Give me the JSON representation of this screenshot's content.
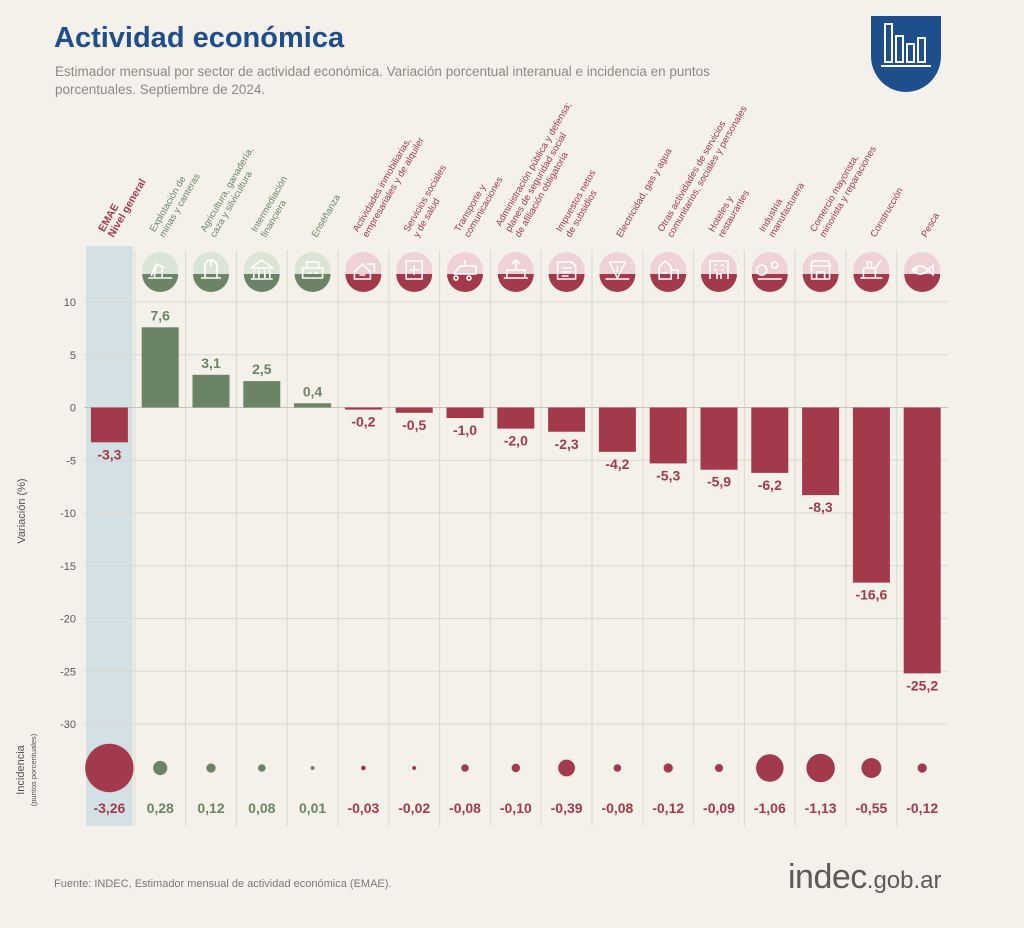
{
  "header": {
    "title": "Actividad económica",
    "subtitle": "Estimador mensual por sector de actividad económica. Variación porcentual interanual e incidencia en puntos porcentuales. Septiembre de 2024."
  },
  "colors": {
    "positive": "#6b8466",
    "negative": "#a33a4b",
    "title": "#1f4e8c",
    "highlight": "#d3e0e4",
    "grid": "#dcd8cf",
    "icon_pos_bg": "#dbe5d5",
    "icon_neg_bg": "#efd2d6"
  },
  "chart_data": {
    "type": "bar",
    "ylabel": "Variación (%)",
    "ylabel2": "Incidencia",
    "ylabel2_sub": "(puntos porcentuales)",
    "ylim": [
      -30,
      10
    ],
    "yticks": [
      "10",
      "5",
      "0",
      "-5",
      "-10",
      "-15",
      "-20",
      "-25",
      "-30"
    ],
    "grid": true,
    "categories": [
      {
        "label": "EMAE\nNivel general",
        "icon": "emae",
        "value": -3.3,
        "value_label": "-3,3",
        "incidence": -3.26,
        "incidence_label": "-3,26",
        "highlight": true
      },
      {
        "label": "Explotación de\nminas y canteras",
        "icon": "oil-pump-icon",
        "value": 7.6,
        "value_label": "7,6",
        "incidence": 0.28,
        "incidence_label": "0,28"
      },
      {
        "label": "Agricultura, ganadería,\ncaza y silvicultura",
        "icon": "agriculture-icon",
        "value": 3.1,
        "value_label": "3,1",
        "incidence": 0.12,
        "incidence_label": "0,12"
      },
      {
        "label": "Intermediación\nfinanciera",
        "icon": "bank-icon",
        "value": 2.5,
        "value_label": "2,5",
        "incidence": 0.08,
        "incidence_label": "0,08"
      },
      {
        "label": "Enseñanza",
        "icon": "school-icon",
        "value": 0.4,
        "value_label": "0,4",
        "incidence": 0.01,
        "incidence_label": "0,01"
      },
      {
        "label": "Actividades inmobiliarias,\nempresariales y de alquiler",
        "icon": "real-estate-icon",
        "value": -0.2,
        "value_label": "-0,2",
        "incidence": -0.03,
        "incidence_label": "-0,03"
      },
      {
        "label": "Servicios sociales\ny de salud",
        "icon": "health-icon",
        "value": -0.5,
        "value_label": "-0,5",
        "incidence": -0.02,
        "incidence_label": "-0,02"
      },
      {
        "label": "Transporte y\ncomunicaciones",
        "icon": "transport-icon",
        "value": -1.0,
        "value_label": "-1,0",
        "incidence": -0.08,
        "incidence_label": "-0,08"
      },
      {
        "label": "Administración pública y defensa;\nplanes de seguridad social\nde afiliación obligatoria",
        "icon": "government-icon",
        "value": -2.0,
        "value_label": "-2,0",
        "incidence": -0.1,
        "incidence_label": "-0,10"
      },
      {
        "label": "Impuestos netos\nde subsidios",
        "icon": "taxes-icon",
        "value": -2.3,
        "value_label": "-2,3",
        "incidence": -0.39,
        "incidence_label": "-0,39"
      },
      {
        "label": "Electricidad, gas y agua",
        "icon": "utilities-icon",
        "value": -4.2,
        "value_label": "-4,2",
        "incidence": -0.08,
        "incidence_label": "-0,08"
      },
      {
        "label": "Otras actividades de servicios\ncomunitarios, sociales y personales",
        "icon": "community-icon",
        "value": -5.3,
        "value_label": "-5,3",
        "incidence": -0.12,
        "incidence_label": "-0,12"
      },
      {
        "label": "Hoteles y\nrestaurantes",
        "icon": "hotel-icon",
        "value": -5.9,
        "value_label": "-5,9",
        "incidence": -0.09,
        "incidence_label": "-0,09"
      },
      {
        "label": "Industria\nmanufacturera",
        "icon": "gears-icon",
        "value": -6.2,
        "value_label": "-6,2",
        "incidence": -1.06,
        "incidence_label": "-1,06"
      },
      {
        "label": "Comercio mayorista,\nminorista y reparaciones",
        "icon": "shop-icon",
        "value": -8.3,
        "value_label": "-8,3",
        "incidence": -1.13,
        "incidence_label": "-1,13"
      },
      {
        "label": "Construcción",
        "icon": "construction-icon",
        "value": -16.6,
        "value_label": "-16,6",
        "incidence": -0.55,
        "incidence_label": "-0,55"
      },
      {
        "label": "Pesca",
        "icon": "fish-icon",
        "value": -25.2,
        "value_label": "-25,2",
        "incidence": -0.12,
        "incidence_label": "-0,12"
      }
    ]
  },
  "footer": {
    "source": "Fuente: INDEC, Estimador mensual de actividad económica (EMAE).",
    "brand_main": "indec",
    "brand_suffix": ".gob.ar"
  }
}
